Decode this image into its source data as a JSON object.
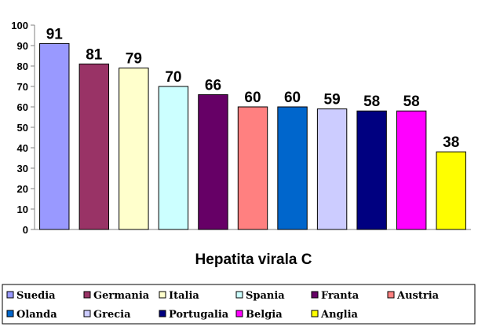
{
  "chart_data": {
    "type": "bar",
    "title": "Hepatita virala C",
    "categories": [
      "Suedia",
      "Germania",
      "Italia",
      "Spania",
      "Franta",
      "Austria",
      "Olanda",
      "Grecia",
      "Portugalia",
      "Belgia",
      "Anglia"
    ],
    "values": [
      91,
      81,
      79,
      70,
      66,
      60,
      60,
      59,
      58,
      58,
      38
    ],
    "colors": [
      "#9999ff",
      "#993366",
      "#ffffcc",
      "#ccffff",
      "#660066",
      "#ff8080",
      "#0066cc",
      "#ccccff",
      "#000080",
      "#ff00ff",
      "#ffff00"
    ],
    "ylim": [
      0,
      100
    ],
    "yticks": [
      0,
      10,
      20,
      30,
      40,
      50,
      60,
      70,
      80,
      90,
      100
    ],
    "legend_position": "bottom",
    "grid": false
  }
}
